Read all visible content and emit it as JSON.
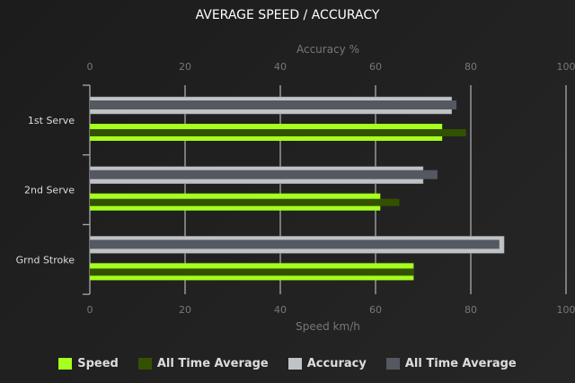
{
  "chart_data": {
    "type": "bar",
    "orientation": "horizontal",
    "title": "AVERAGE SPEED / ACCURACY",
    "top_axis": {
      "label": "Accuracy %",
      "ticks": [
        0,
        20,
        40,
        60,
        80,
        100
      ],
      "range": [
        0,
        100
      ]
    },
    "bottom_axis": {
      "label": "Speed km/h",
      "ticks": [
        0,
        20,
        40,
        60,
        80,
        100
      ],
      "range": [
        0,
        100
      ]
    },
    "categories": [
      "1st Serve",
      "2nd Serve",
      "Grnd Stroke"
    ],
    "grid": true,
    "legend_position": "bottom",
    "series": [
      {
        "name": "Speed",
        "axis": "bottom",
        "color": "#a6ff1e",
        "values": [
          74,
          61,
          68
        ]
      },
      {
        "name": "All Time Average",
        "axis": "bottom",
        "color": "#335200",
        "values": [
          79,
          65,
          68
        ]
      },
      {
        "name": "Accuracy",
        "axis": "top",
        "color": "#c0c3c6",
        "values": [
          76,
          70,
          87
        ]
      },
      {
        "name": "All Time Average",
        "axis": "top",
        "color": "#535861",
        "values": [
          77,
          73,
          86
        ]
      }
    ]
  }
}
